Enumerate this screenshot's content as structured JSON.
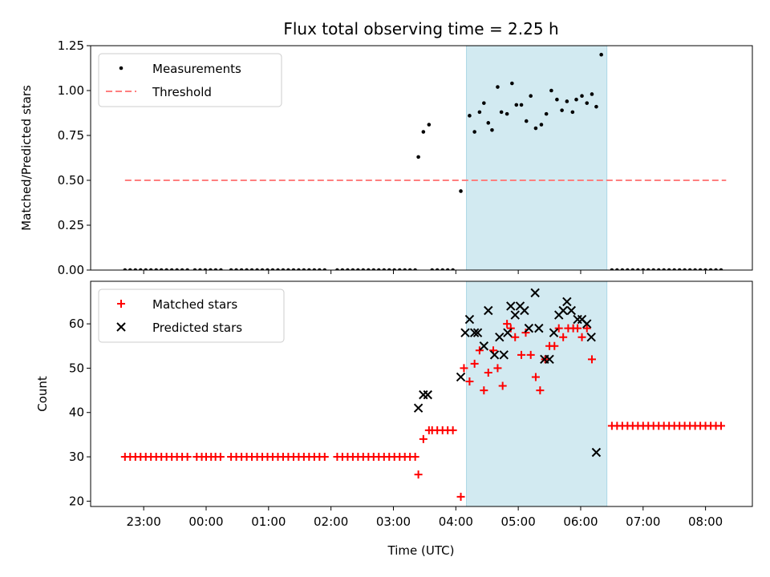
{
  "chart_data": {
    "title": "Flux total observing time = 2.25 h",
    "xlabel": "Time (UTC)",
    "x_units": "hours since midnight UTC (negative = previous day)",
    "xlim": [
      -1.85,
      8.75
    ],
    "xtick_labels": [
      "23:00",
      "00:00",
      "01:00",
      "02:00",
      "03:00",
      "04:00",
      "05:00",
      "06:00",
      "07:00",
      "08:00"
    ],
    "xtick_values": [
      -1,
      0,
      1,
      2,
      3,
      4,
      5,
      6,
      7,
      8
    ],
    "span": {
      "x0": 4.17,
      "x1": 6.42,
      "color": "#add8e6"
    },
    "colors": {
      "measurement": "#000000",
      "threshold": "#ff7f7f",
      "matched": "#ff0000",
      "predicted": "#000000"
    },
    "panels": [
      {
        "type": "scatter",
        "ylabel": "Matched/Predicted stars",
        "ylim": [
          0,
          1.25
        ],
        "yticks": [
          0.0,
          0.25,
          0.5,
          0.75,
          1.0,
          1.25
        ],
        "ytick_labels": [
          "0.00",
          "0.25",
          "0.50",
          "0.75",
          "1.00",
          "1.25"
        ],
        "legend": {
          "placement": "upper-left",
          "entries": [
            "Measurements",
            "Threshold"
          ]
        },
        "threshold": {
          "name": "Threshold",
          "x": [
            -1.3,
            8.33
          ],
          "y": 0.5
        },
        "zero_series": {
          "ranges": [
            [
              -1.3,
              -0.3
            ],
            [
              -0.18,
              0.27
            ],
            [
              0.4,
              1.95
            ],
            [
              2.1,
              3.35
            ],
            [
              3.62,
              4.02
            ],
            [
              6.5,
              8.33
            ]
          ],
          "step": 0.0833,
          "y": 0
        },
        "series": [
          {
            "name": "Measurements",
            "points": [
              [
                3.4,
                0.63
              ],
              [
                3.48,
                0.77
              ],
              [
                3.57,
                0.81
              ],
              [
                4.08,
                0.44
              ],
              [
                4.22,
                0.86
              ],
              [
                4.3,
                0.77
              ],
              [
                4.38,
                0.88
              ],
              [
                4.45,
                0.93
              ],
              [
                4.52,
                0.82
              ],
              [
                4.58,
                0.78
              ],
              [
                4.67,
                1.02
              ],
              [
                4.73,
                0.88
              ],
              [
                4.82,
                0.87
              ],
              [
                4.9,
                1.04
              ],
              [
                4.97,
                0.92
              ],
              [
                5.05,
                0.92
              ],
              [
                5.13,
                0.83
              ],
              [
                5.2,
                0.97
              ],
              [
                5.28,
                0.79
              ],
              [
                5.37,
                0.81
              ],
              [
                5.45,
                0.87
              ],
              [
                5.53,
                1.0
              ],
              [
                5.62,
                0.95
              ],
              [
                5.7,
                0.89
              ],
              [
                5.78,
                0.94
              ],
              [
                5.87,
                0.88
              ],
              [
                5.93,
                0.95
              ],
              [
                6.02,
                0.97
              ],
              [
                6.1,
                0.93
              ],
              [
                6.18,
                0.98
              ],
              [
                6.25,
                0.91
              ],
              [
                6.33,
                1.2
              ]
            ]
          }
        ]
      },
      {
        "type": "scatter",
        "ylabel": "Count",
        "ylim": [
          18.8,
          69.6
        ],
        "yticks": [
          20,
          30,
          40,
          50,
          60
        ],
        "ytick_labels": [
          "20",
          "30",
          "40",
          "50",
          "60"
        ],
        "legend": {
          "placement": "upper-left",
          "entries": [
            "Matched stars",
            "Predicted stars"
          ]
        },
        "flat_runs": [
          {
            "series": "Matched stars",
            "from": -1.3,
            "to": -0.3,
            "step": 0.0833,
            "y": 30
          },
          {
            "series": "Matched stars",
            "from": 0.4,
            "to": 1.95,
            "step": 0.0833,
            "y": 30
          },
          {
            "series": "Matched stars",
            "from": 2.1,
            "to": 3.35,
            "step": 0.0833,
            "y": 30
          },
          {
            "series": "Matched stars",
            "from": 3.62,
            "to": 4.02,
            "step": 0.0833,
            "y": 36
          },
          {
            "series": "Matched stars",
            "from": 6.5,
            "to": 8.33,
            "step": 0.0833,
            "y": 37
          }
        ],
        "series": [
          {
            "name": "Matched stars",
            "points": [
              [
                -0.15,
                30
              ],
              [
                -0.07,
                30
              ],
              [
                0.0,
                30
              ],
              [
                0.08,
                30
              ],
              [
                0.15,
                30
              ],
              [
                0.23,
                30
              ],
              [
                3.4,
                26
              ],
              [
                3.48,
                34
              ],
              [
                3.57,
                36
              ],
              [
                4.08,
                21
              ],
              [
                4.13,
                50
              ],
              [
                4.22,
                47
              ],
              [
                4.3,
                51
              ],
              [
                4.38,
                54
              ],
              [
                4.45,
                45
              ],
              [
                4.52,
                49
              ],
              [
                4.6,
                54
              ],
              [
                4.67,
                50
              ],
              [
                4.75,
                46
              ],
              [
                4.82,
                60
              ],
              [
                4.88,
                59
              ],
              [
                4.95,
                57
              ],
              [
                5.05,
                53
              ],
              [
                5.12,
                58
              ],
              [
                5.2,
                53
              ],
              [
                5.28,
                48
              ],
              [
                5.35,
                45
              ],
              [
                5.43,
                52
              ],
              [
                5.5,
                55
              ],
              [
                5.58,
                55
              ],
              [
                5.65,
                59
              ],
              [
                5.72,
                57
              ],
              [
                5.8,
                59
              ],
              [
                5.88,
                59
              ],
              [
                5.95,
                59
              ],
              [
                6.02,
                57
              ],
              [
                6.1,
                59
              ],
              [
                6.18,
                52
              ]
            ]
          },
          {
            "name": "Predicted stars",
            "points": [
              [
                3.4,
                41
              ],
              [
                3.48,
                44
              ],
              [
                3.55,
                44
              ],
              [
                4.08,
                48
              ],
              [
                4.15,
                58
              ],
              [
                4.22,
                61
              ],
              [
                4.3,
                58
              ],
              [
                4.35,
                58
              ],
              [
                4.45,
                55
              ],
              [
                4.52,
                63
              ],
              [
                4.62,
                53
              ],
              [
                4.7,
                57
              ],
              [
                4.77,
                53
              ],
              [
                4.83,
                58
              ],
              [
                4.88,
                64
              ],
              [
                4.95,
                62
              ],
              [
                5.03,
                64
              ],
              [
                5.1,
                63
              ],
              [
                5.17,
                59
              ],
              [
                5.27,
                67
              ],
              [
                5.33,
                59
              ],
              [
                5.42,
                52
              ],
              [
                5.5,
                52
              ],
              [
                5.57,
                58
              ],
              [
                5.65,
                62
              ],
              [
                5.72,
                63
              ],
              [
                5.78,
                65
              ],
              [
                5.85,
                63
              ],
              [
                5.95,
                61
              ],
              [
                6.02,
                61
              ],
              [
                6.1,
                60
              ],
              [
                6.17,
                57
              ],
              [
                6.25,
                31
              ]
            ]
          }
        ]
      }
    ]
  }
}
